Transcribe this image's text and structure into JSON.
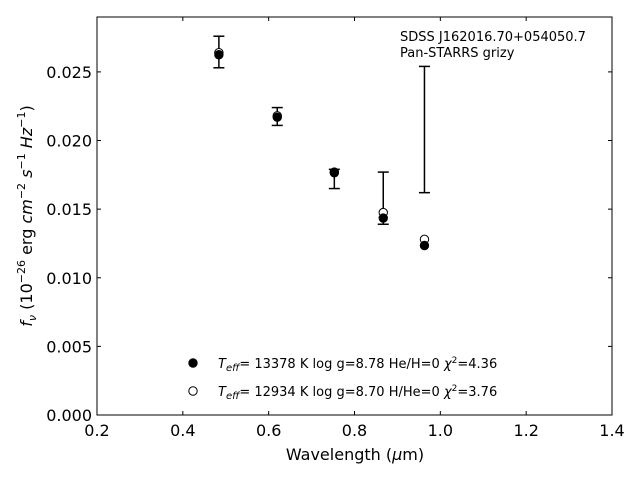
{
  "chart_data": {
    "type": "scatter",
    "title": "",
    "xlabel": "Wavelength (μm)",
    "ylabel": "f_ν (10^-26 erg cm^-2 s^-1 Hz^-1)",
    "xlim": [
      0.2,
      1.4
    ],
    "ylim": [
      0.0,
      0.029
    ],
    "x_ticks": [
      0.2,
      0.4,
      0.6,
      0.8,
      1.0,
      1.2,
      1.4
    ],
    "x_tick_labels": [
      "0.2",
      "0.4",
      "0.6",
      "0.8",
      "1.0",
      "1.2",
      "1.4"
    ],
    "y_ticks": [
      0.0,
      0.005,
      0.01,
      0.015,
      0.02,
      0.025
    ],
    "y_tick_labels": [
      "0.000",
      "0.005",
      "0.010",
      "0.015",
      "0.020",
      "0.025"
    ],
    "annotation": [
      "SDSS J162016.70+054050.7",
      "Pan-STARRS grizy"
    ],
    "observed": {
      "x": [
        0.484,
        0.62,
        0.753,
        0.867,
        0.963
      ],
      "y": [
        0.02645,
        0.02175,
        0.0172,
        0.0158,
        0.0208
      ],
      "err": [
        0.00115,
        0.00065,
        0.0007,
        0.0019,
        0.0046
      ]
    },
    "series": [
      {
        "name": "T_eff= 13378 K  log g=8.78  He/H=0  χ²=4.36",
        "marker": "filled",
        "x": [
          0.484,
          0.62,
          0.753,
          0.867,
          0.963
        ],
        "y": [
          0.02625,
          0.0217,
          0.01765,
          0.01435,
          0.01235
        ]
      },
      {
        "name": "T_eff= 12934 K  log g=8.70  H/He=0  χ²=3.76",
        "marker": "open",
        "x": [
          0.484,
          0.62,
          0.753,
          0.867,
          0.963
        ],
        "y": [
          0.0264,
          0.0218,
          0.0177,
          0.01475,
          0.0128
        ]
      }
    ],
    "legend": {
      "placement": "lower-center",
      "entries": [
        {
          "teff": "= 13378 K",
          "logg": "log g=8.78",
          "comp": "He/H=0",
          "chi": "=4.36"
        },
        {
          "teff": "= 12934 K",
          "logg": "log g=8.70",
          "comp": "H/He=0",
          "chi": "=3.76"
        }
      ]
    },
    "grid": false
  }
}
